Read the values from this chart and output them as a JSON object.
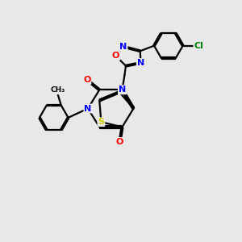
{
  "bg_color": "#e8e8e8",
  "atom_colors": {
    "N": "#0000ff",
    "O": "#ff0000",
    "S": "#cccc00",
    "Cl": "#008000",
    "C": "#000000"
  },
  "bond_color": "#000000",
  "lw": 1.6,
  "dbo": 0.04
}
